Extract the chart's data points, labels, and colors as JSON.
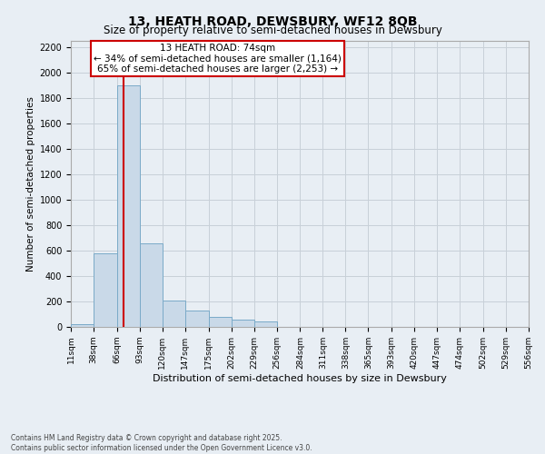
{
  "title_line1": "13, HEATH ROAD, DEWSBURY, WF12 8QB",
  "title_line2": "Size of property relative to semi-detached houses in Dewsbury",
  "xlabel": "Distribution of semi-detached houses by size in Dewsbury",
  "ylabel": "Number of semi-detached properties",
  "property_size": 74,
  "annotation_title": "13 HEATH ROAD: 74sqm",
  "annotation_line2": "← 34% of semi-detached houses are smaller (1,164)",
  "annotation_line3": "65% of semi-detached houses are larger (2,253) →",
  "footer_line1": "Contains HM Land Registry data © Crown copyright and database right 2025.",
  "footer_line2": "Contains public sector information licensed under the Open Government Licence v3.0.",
  "bin_edges": [
    11,
    38,
    66,
    93,
    120,
    147,
    175,
    202,
    229,
    256,
    284,
    311,
    338,
    365,
    393,
    420,
    447,
    474,
    502,
    529,
    556
  ],
  "bin_counts": [
    20,
    580,
    1900,
    660,
    210,
    130,
    80,
    55,
    40,
    0,
    0,
    0,
    0,
    0,
    0,
    0,
    0,
    0,
    0,
    0
  ],
  "ylim": [
    0,
    2250
  ],
  "yticks": [
    0,
    200,
    400,
    600,
    800,
    1000,
    1200,
    1400,
    1600,
    1800,
    2000,
    2200
  ],
  "bar_color": "#c9d9e8",
  "bar_edge_color": "#7aaac8",
  "vline_color": "#cc0000",
  "grid_color": "#c8d0d8",
  "background_color": "#e8eef4",
  "annotation_box_color": "#cc0000",
  "text_color": "#000000"
}
